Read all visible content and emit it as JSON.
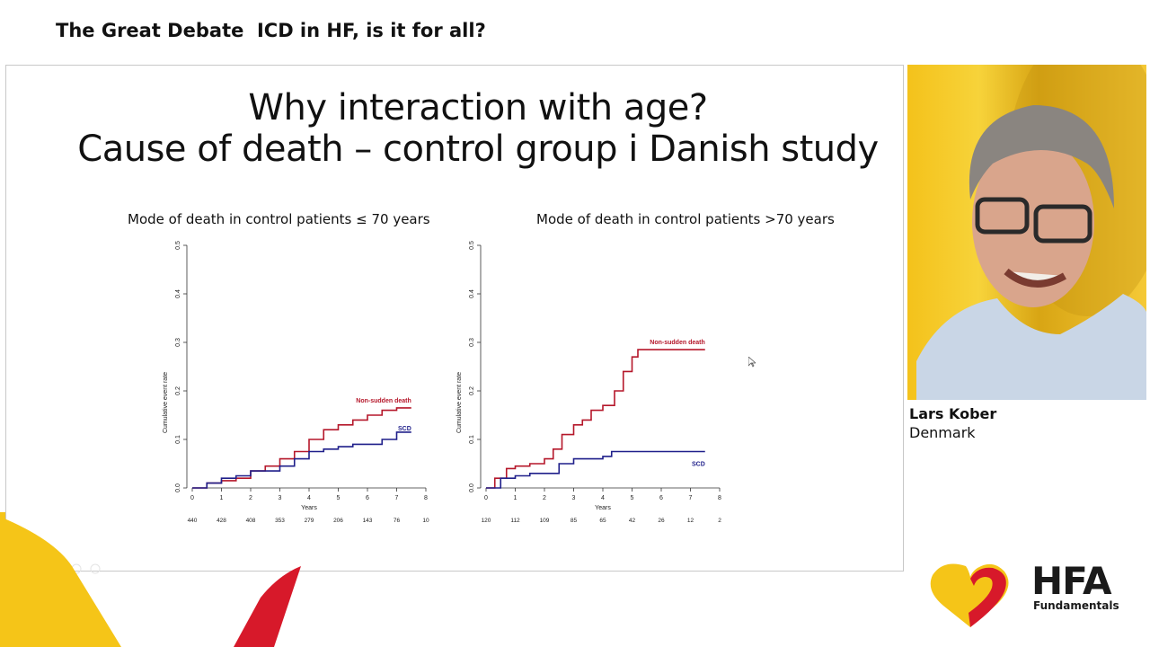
{
  "header": {
    "session_title": "The Great Debate  ICD in HF, is it for all?"
  },
  "slide": {
    "title_line1": "Why interaction with age?",
    "title_line2": "Cause of death – control group i Danish study"
  },
  "speaker": {
    "name": "Lars Kober",
    "country": "Denmark"
  },
  "logo": {
    "name": "HFA",
    "sub": "Fundamentals"
  },
  "icons": [
    "play-icon",
    "pencil-icon",
    "pointer-icon",
    "zoom-icon",
    "more-icon"
  ],
  "colors": {
    "non_sudden": "#b5172a",
    "scd": "#1f1f8a",
    "accent_yellow": "#f5c518",
    "accent_red": "#d7192a"
  },
  "chart_data": [
    {
      "type": "line",
      "title": "Mode of death in control patients ≤ 70 years",
      "xlabel": "Years",
      "ylabel": "Cumulative event rate",
      "xlim": [
        0,
        8
      ],
      "ylim": [
        0,
        0.5
      ],
      "x_ticks": [
        "0",
        "1",
        "2",
        "3",
        "4",
        "5",
        "6",
        "7",
        "8"
      ],
      "y_ticks": [
        "0.0",
        "0.1",
        "0.2",
        "0.3",
        "0.4",
        "0.5"
      ],
      "at_risk": [
        "440",
        "428",
        "408",
        "353",
        "279",
        "206",
        "143",
        "76",
        "10"
      ],
      "series": [
        {
          "name": "Non-sudden death",
          "color": "#b5172a",
          "points": [
            [
              0,
              0
            ],
            [
              0.5,
              0.01
            ],
            [
              1,
              0.015
            ],
            [
              1.5,
              0.02
            ],
            [
              2,
              0.035
            ],
            [
              2.5,
              0.045
            ],
            [
              3,
              0.06
            ],
            [
              3.5,
              0.075
            ],
            [
              4,
              0.1
            ],
            [
              4.5,
              0.12
            ],
            [
              5,
              0.13
            ],
            [
              5.5,
              0.14
            ],
            [
              6,
              0.15
            ],
            [
              6.5,
              0.16
            ],
            [
              7,
              0.165
            ],
            [
              7.5,
              0.165
            ]
          ]
        },
        {
          "name": "SCD",
          "color": "#1f1f8a",
          "points": [
            [
              0,
              0
            ],
            [
              0.5,
              0.01
            ],
            [
              1,
              0.02
            ],
            [
              1.5,
              0.025
            ],
            [
              2,
              0.035
            ],
            [
              2.5,
              0.035
            ],
            [
              3,
              0.045
            ],
            [
              3.5,
              0.06
            ],
            [
              4,
              0.075
            ],
            [
              4.5,
              0.08
            ],
            [
              5,
              0.085
            ],
            [
              5.5,
              0.09
            ],
            [
              6,
              0.09
            ],
            [
              6.5,
              0.1
            ],
            [
              7,
              0.115
            ],
            [
              7.5,
              0.115
            ]
          ]
        }
      ]
    },
    {
      "type": "line",
      "title": "Mode of death in control patients >70 years",
      "xlabel": "Years",
      "ylabel": "Cumulative event rate",
      "xlim": [
        0,
        8
      ],
      "ylim": [
        0,
        0.5
      ],
      "x_ticks": [
        "0",
        "1",
        "2",
        "3",
        "4",
        "5",
        "6",
        "7",
        "8"
      ],
      "y_ticks": [
        "0.0",
        "0.1",
        "0.2",
        "0.3",
        "0.4",
        "0.5"
      ],
      "at_risk": [
        "120",
        "112",
        "109",
        "85",
        "65",
        "42",
        "26",
        "12",
        "2"
      ],
      "series": [
        {
          "name": "Non-sudden death",
          "color": "#b5172a",
          "points": [
            [
              0,
              0
            ],
            [
              0.3,
              0.02
            ],
            [
              0.7,
              0.04
            ],
            [
              1,
              0.045
            ],
            [
              1.5,
              0.05
            ],
            [
              2,
              0.06
            ],
            [
              2.3,
              0.08
            ],
            [
              2.6,
              0.11
            ],
            [
              3,
              0.13
            ],
            [
              3.3,
              0.14
            ],
            [
              3.6,
              0.16
            ],
            [
              4,
              0.17
            ],
            [
              4.4,
              0.2
            ],
            [
              4.7,
              0.24
            ],
            [
              5,
              0.27
            ],
            [
              5.2,
              0.285
            ],
            [
              6,
              0.285
            ],
            [
              7.5,
              0.285
            ]
          ]
        },
        {
          "name": "SCD",
          "color": "#1f1f8a",
          "points": [
            [
              0,
              0
            ],
            [
              0.5,
              0.02
            ],
            [
              1,
              0.025
            ],
            [
              1.5,
              0.03
            ],
            [
              2,
              0.03
            ],
            [
              2.5,
              0.05
            ],
            [
              3,
              0.06
            ],
            [
              3.5,
              0.06
            ],
            [
              4,
              0.065
            ],
            [
              4.3,
              0.075
            ],
            [
              5,
              0.075
            ],
            [
              6,
              0.075
            ],
            [
              7.5,
              0.075
            ]
          ]
        }
      ]
    }
  ]
}
